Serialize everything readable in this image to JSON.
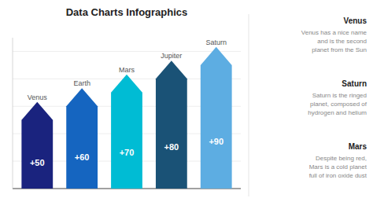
{
  "chart_data": {
    "type": "bar",
    "title": "Data Charts Infographics",
    "categories": [
      "Venus",
      "Earth",
      "Mars",
      "Jupiter",
      "Saturn"
    ],
    "values": [
      50,
      60,
      70,
      80,
      90
    ],
    "value_labels": [
      "+50",
      "+60",
      "+70",
      "+80",
      "+90"
    ],
    "colors": [
      "#1a237e",
      "#1565c0",
      "#00bcd4",
      "#1a5276",
      "#5dade2"
    ],
    "ylim": [
      0,
      110
    ],
    "yticks": [
      0,
      20,
      40,
      60,
      80,
      100
    ],
    "grid": true,
    "tick_labels": false,
    "data_labels": true,
    "annotations": [
      {
        "heading": "Venus",
        "text": "Venus has a nice name\nand is the second\nplanet from the Sun"
      },
      {
        "heading": "Saturn",
        "text": "Saturn is the ringed\nplanet, composed of\nhydrogen and helium"
      },
      {
        "heading": "Mars",
        "text": "Despite being red,\nMars is a cold planet\nfull of iron oxide dust"
      }
    ]
  }
}
